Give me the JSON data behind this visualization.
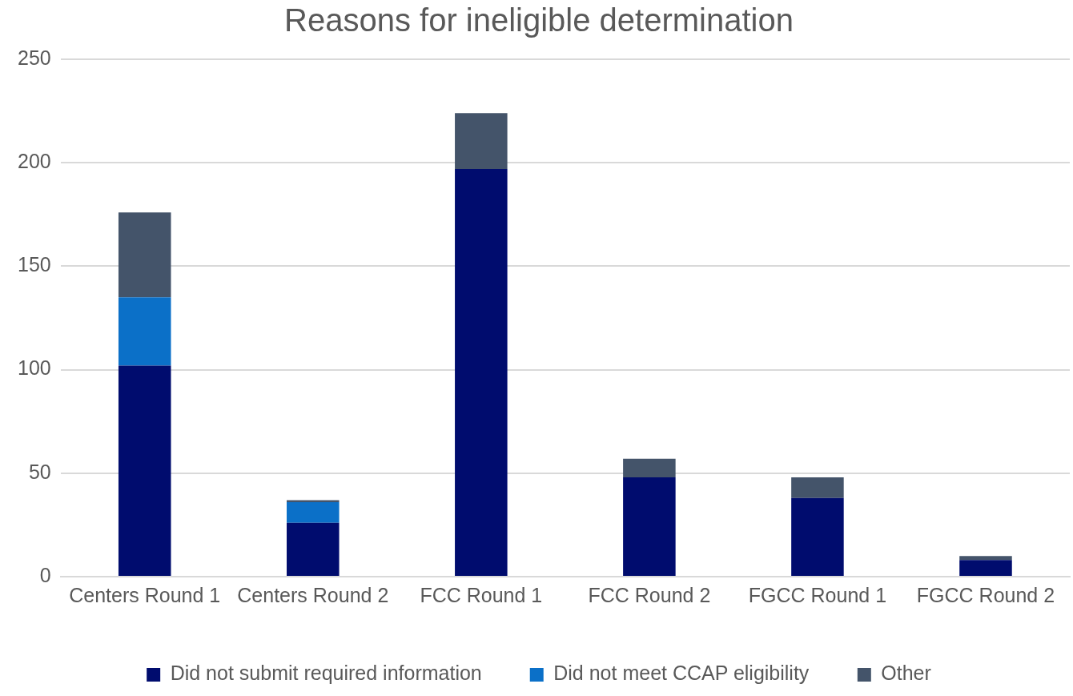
{
  "chart_data": {
    "type": "bar",
    "title": "Reasons for ineligible determination",
    "stacked": true,
    "categories": [
      "Centers Round 1",
      "Centers Round 2",
      "FCC Round 1",
      "FCC Round 2",
      "FGCC Round 1",
      "FGCC Round 2"
    ],
    "series": [
      {
        "name": "Did not submit required information",
        "color": "#000c6e",
        "values": [
          102,
          26,
          197,
          48,
          38,
          8
        ]
      },
      {
        "name": "Did not meet CCAP eligibility",
        "color": "#0b70c8",
        "values": [
          33,
          10,
          0,
          0,
          0,
          0
        ]
      },
      {
        "name": "Other",
        "color": "#44546a",
        "values": [
          41,
          1,
          27,
          9,
          10,
          2
        ]
      }
    ],
    "ylim": [
      0,
      250
    ],
    "yticks": [
      0,
      50,
      100,
      150,
      200,
      250
    ],
    "grid": "y",
    "legend": "bottom"
  }
}
